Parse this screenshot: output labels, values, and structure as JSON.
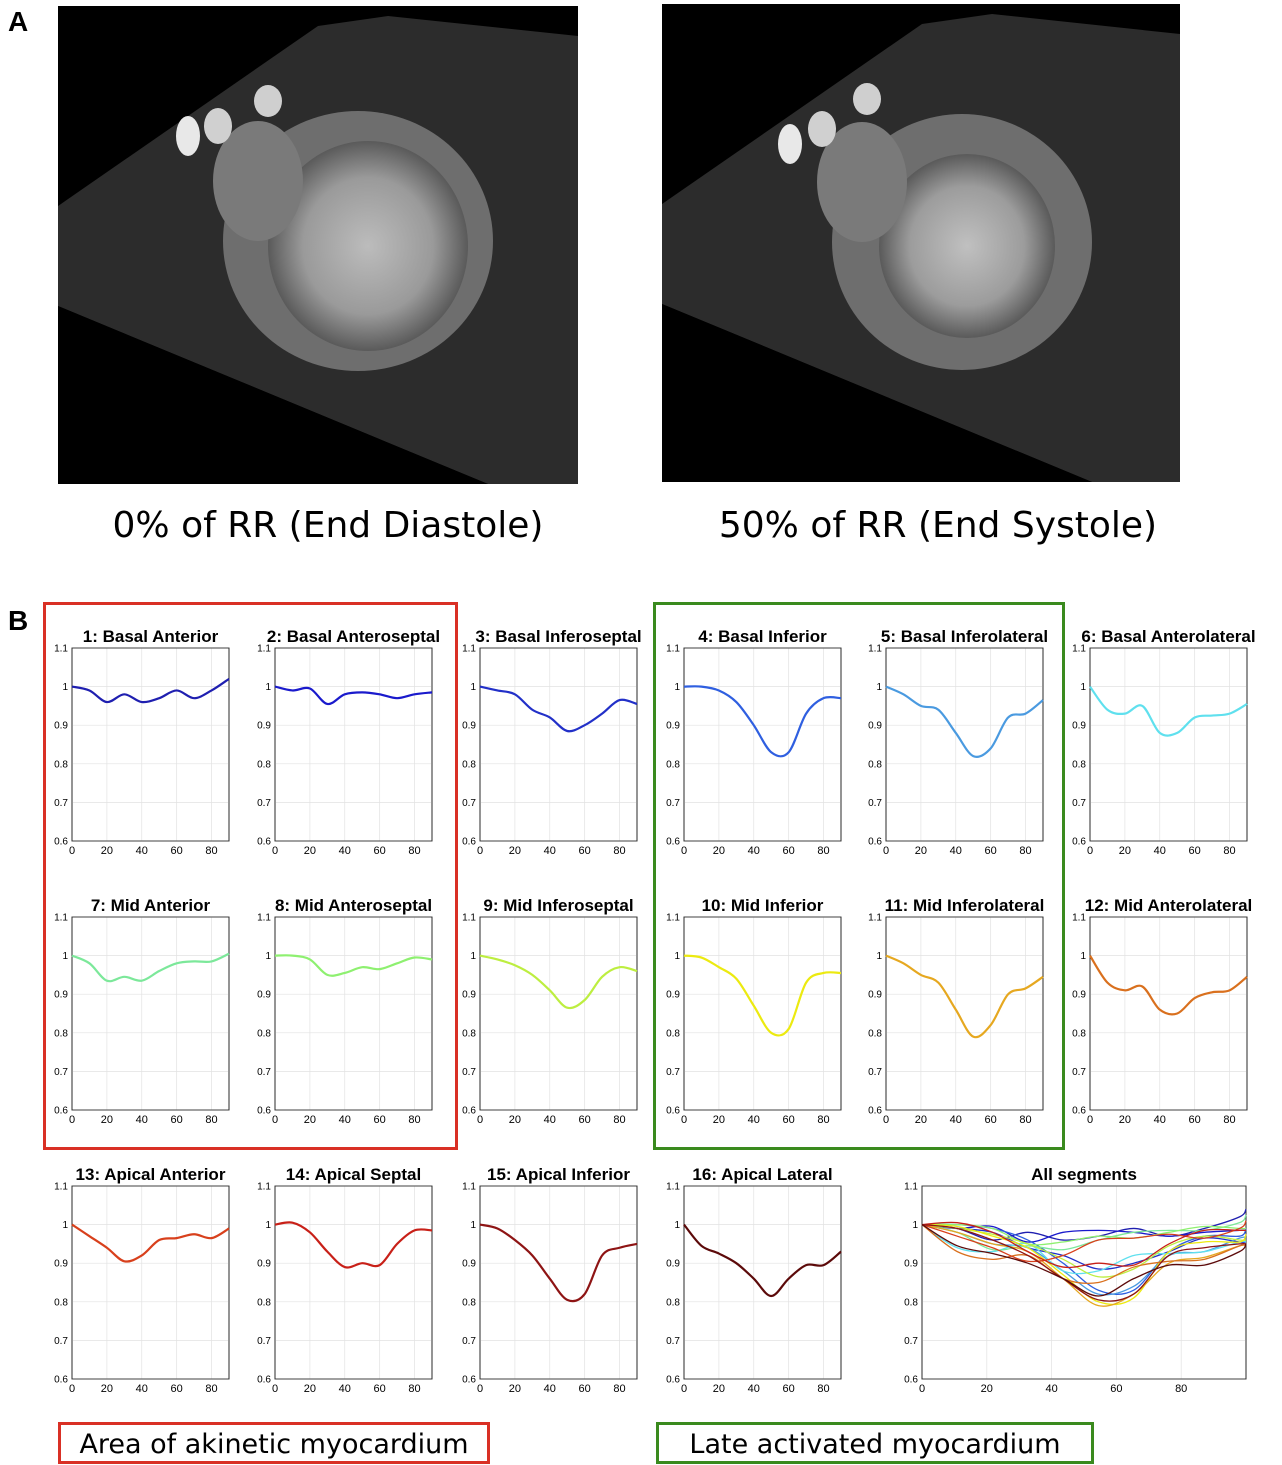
{
  "panels": {
    "a": "A",
    "b": "B"
  },
  "images": [
    {
      "caption": "0% of RR  (End Diastole)"
    },
    {
      "caption": "50% of RR  (End Systole)"
    }
  ],
  "legend": {
    "akinetic": "Area of akinetic myocardium",
    "late": "Late activated myocardium",
    "akinetic_color": "#d93025",
    "late_color": "#3a8a1e"
  },
  "chart_data": [
    {
      "type": "line",
      "title": "1: Basal Anterior",
      "color": "#1f1fb0",
      "xlim": [
        0,
        90
      ],
      "ylim": [
        0.6,
        1.1
      ],
      "x": [
        0,
        10,
        20,
        30,
        40,
        50,
        60,
        70,
        80,
        90
      ],
      "y": [
        1.0,
        0.99,
        0.96,
        0.98,
        0.96,
        0.97,
        0.99,
        0.97,
        0.99,
        1.02
      ]
    },
    {
      "type": "line",
      "title": "2: Basal Anteroseptal",
      "color": "#1a1acc",
      "xlim": [
        0,
        90
      ],
      "ylim": [
        0.6,
        1.1
      ],
      "x": [
        0,
        10,
        20,
        30,
        40,
        50,
        60,
        70,
        80,
        90
      ],
      "y": [
        1.0,
        0.99,
        0.995,
        0.955,
        0.98,
        0.985,
        0.98,
        0.97,
        0.98,
        0.985
      ]
    },
    {
      "type": "line",
      "title": "3: Basal Inferoseptal",
      "color": "#2230c8",
      "xlim": [
        0,
        90
      ],
      "ylim": [
        0.6,
        1.1
      ],
      "x": [
        0,
        10,
        20,
        30,
        40,
        50,
        60,
        70,
        80,
        90
      ],
      "y": [
        1.0,
        0.99,
        0.98,
        0.94,
        0.92,
        0.885,
        0.9,
        0.93,
        0.965,
        0.955
      ]
    },
    {
      "type": "line",
      "title": "4: Basal Inferior",
      "color": "#2f5fe0",
      "xlim": [
        0,
        90
      ],
      "ylim": [
        0.6,
        1.1
      ],
      "x": [
        0,
        10,
        20,
        30,
        40,
        50,
        60,
        70,
        80,
        90
      ],
      "y": [
        1.0,
        1.0,
        0.99,
        0.96,
        0.9,
        0.83,
        0.83,
        0.93,
        0.97,
        0.97
      ]
    },
    {
      "type": "line",
      "title": "5: Basal Inferolateral",
      "color": "#4a9ae0",
      "xlim": [
        0,
        90
      ],
      "ylim": [
        0.6,
        1.1
      ],
      "x": [
        0,
        10,
        20,
        30,
        40,
        50,
        60,
        70,
        80,
        90
      ],
      "y": [
        1.0,
        0.98,
        0.95,
        0.94,
        0.88,
        0.82,
        0.84,
        0.92,
        0.93,
        0.965
      ]
    },
    {
      "type": "line",
      "title": "6: Basal Anterolateral",
      "color": "#5fe0ee",
      "xlim": [
        0,
        90
      ],
      "ylim": [
        0.6,
        1.1
      ],
      "x": [
        0,
        10,
        20,
        30,
        40,
        50,
        60,
        70,
        80,
        90
      ],
      "y": [
        1.0,
        0.94,
        0.93,
        0.95,
        0.88,
        0.88,
        0.92,
        0.925,
        0.93,
        0.955
      ]
    },
    {
      "type": "line",
      "title": "7: Mid Anterior",
      "color": "#7ce89a",
      "xlim": [
        0,
        90
      ],
      "ylim": [
        0.6,
        1.1
      ],
      "x": [
        0,
        10,
        20,
        30,
        40,
        50,
        60,
        70,
        80,
        90
      ],
      "y": [
        1.0,
        0.98,
        0.935,
        0.945,
        0.935,
        0.96,
        0.98,
        0.985,
        0.985,
        1.005
      ]
    },
    {
      "type": "line",
      "title": "8: Mid Anteroseptal",
      "color": "#8ef070",
      "xlim": [
        0,
        90
      ],
      "ylim": [
        0.6,
        1.1
      ],
      "x": [
        0,
        10,
        20,
        30,
        40,
        50,
        60,
        70,
        80,
        90
      ],
      "y": [
        1.0,
        1.0,
        0.99,
        0.95,
        0.955,
        0.97,
        0.965,
        0.98,
        0.995,
        0.99
      ]
    },
    {
      "type": "line",
      "title": "9: Mid Inferoseptal",
      "color": "#bdee40",
      "xlim": [
        0,
        90
      ],
      "ylim": [
        0.6,
        1.1
      ],
      "x": [
        0,
        10,
        20,
        30,
        40,
        50,
        60,
        70,
        80,
        90
      ],
      "y": [
        1.0,
        0.99,
        0.975,
        0.95,
        0.91,
        0.865,
        0.885,
        0.945,
        0.97,
        0.96
      ]
    },
    {
      "type": "line",
      "title": "10: Mid Inferior",
      "color": "#ecea10",
      "xlim": [
        0,
        90
      ],
      "ylim": [
        0.6,
        1.1
      ],
      "x": [
        0,
        10,
        20,
        30,
        40,
        50,
        60,
        70,
        80,
        90
      ],
      "y": [
        1.0,
        0.995,
        0.97,
        0.94,
        0.87,
        0.8,
        0.81,
        0.93,
        0.955,
        0.955
      ]
    },
    {
      "type": "line",
      "title": "11: Mid Inferolateral",
      "color": "#e6a820",
      "xlim": [
        0,
        90
      ],
      "ylim": [
        0.6,
        1.1
      ],
      "x": [
        0,
        10,
        20,
        30,
        40,
        50,
        60,
        70,
        80,
        90
      ],
      "y": [
        1.0,
        0.98,
        0.95,
        0.93,
        0.86,
        0.79,
        0.82,
        0.9,
        0.915,
        0.945
      ]
    },
    {
      "type": "line",
      "title": "12: Mid Anterolateral",
      "color": "#d9701e",
      "xlim": [
        0,
        90
      ],
      "ylim": [
        0.6,
        1.1
      ],
      "x": [
        0,
        10,
        20,
        30,
        40,
        50,
        60,
        70,
        80,
        90
      ],
      "y": [
        1.0,
        0.93,
        0.91,
        0.92,
        0.86,
        0.85,
        0.89,
        0.905,
        0.91,
        0.945
      ]
    },
    {
      "type": "line",
      "title": "13: Apical Anterior",
      "color": "#d8401c",
      "xlim": [
        0,
        90
      ],
      "ylim": [
        0.6,
        1.1
      ],
      "x": [
        0,
        10,
        20,
        30,
        40,
        50,
        60,
        70,
        80,
        90
      ],
      "y": [
        1.0,
        0.97,
        0.94,
        0.905,
        0.92,
        0.96,
        0.965,
        0.975,
        0.965,
        0.99
      ]
    },
    {
      "type": "line",
      "title": "14: Apical Septal",
      "color": "#c82018",
      "xlim": [
        0,
        90
      ],
      "ylim": [
        0.6,
        1.1
      ],
      "x": [
        0,
        10,
        20,
        30,
        40,
        50,
        60,
        70,
        80,
        90
      ],
      "y": [
        1.0,
        1.005,
        0.98,
        0.93,
        0.89,
        0.9,
        0.895,
        0.95,
        0.985,
        0.985
      ]
    },
    {
      "type": "line",
      "title": "15: Apical Inferior",
      "color": "#8e1414",
      "xlim": [
        0,
        90
      ],
      "ylim": [
        0.6,
        1.1
      ],
      "x": [
        0,
        10,
        20,
        30,
        40,
        50,
        60,
        70,
        80,
        90
      ],
      "y": [
        1.0,
        0.99,
        0.96,
        0.92,
        0.86,
        0.805,
        0.82,
        0.92,
        0.94,
        0.95
      ]
    },
    {
      "type": "line",
      "title": "16: Apical Lateral",
      "color": "#5c0a0a",
      "xlim": [
        0,
        90
      ],
      "ylim": [
        0.6,
        1.1
      ],
      "x": [
        0,
        10,
        20,
        30,
        40,
        50,
        60,
        70,
        80,
        90
      ],
      "y": [
        1.0,
        0.945,
        0.925,
        0.9,
        0.86,
        0.815,
        0.86,
        0.895,
        0.895,
        0.93
      ]
    },
    {
      "type": "line",
      "title": "All segments",
      "xlim": [
        0,
        100
      ],
      "ylim": [
        0.6,
        1.1
      ],
      "xticks": [
        0,
        20,
        40,
        60,
        80
      ],
      "series_ref": "all"
    }
  ]
}
